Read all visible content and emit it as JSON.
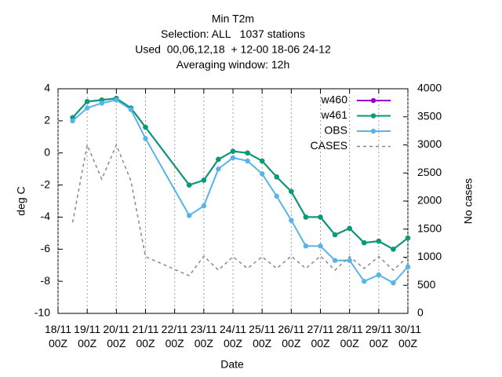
{
  "chart_data": {
    "type": "line",
    "title": [
      "Min T2m",
      "Selection: ALL   1037 stations",
      "Used  00,06,12,18  + 12-00 18-06 24-12",
      "Averaging window: 12h"
    ],
    "xlabel": "Date",
    "ylabel": "deg C",
    "y2label": "No cases",
    "xlim": [
      0,
      12
    ],
    "xticks": [
      {
        "value": 0,
        "label": "18/11 00Z"
      },
      {
        "value": 1,
        "label": "19/11 00Z"
      },
      {
        "value": 2,
        "label": "20/11 00Z"
      },
      {
        "value": 3,
        "label": "21/11 00Z"
      },
      {
        "value": 4,
        "label": "22/11 00Z"
      },
      {
        "value": 5,
        "label": "23/11 00Z"
      },
      {
        "value": 6,
        "label": "24/11 00Z"
      },
      {
        "value": 7,
        "label": "25/11 00Z"
      },
      {
        "value": 8,
        "label": "26/11 00Z"
      },
      {
        "value": 9,
        "label": "27/11 00Z"
      },
      {
        "value": 10,
        "label": "28/11 00Z"
      },
      {
        "value": 11,
        "label": "29/11 00Z"
      },
      {
        "value": 12,
        "label": "30/11 00Z"
      }
    ],
    "ylim": [
      -10,
      4
    ],
    "yticks": [
      -10,
      -8,
      -6,
      -4,
      -2,
      0,
      2,
      4
    ],
    "y2lim": [
      0,
      4000
    ],
    "y2ticks": [
      0,
      500,
      1000,
      1500,
      2000,
      2500,
      3000,
      3500,
      4000
    ],
    "xgrid": true,
    "legend": "top-right",
    "x": [
      0.5,
      1,
      1.5,
      2,
      2.5,
      3,
      4.5,
      5,
      5.5,
      6,
      6.5,
      7,
      7.5,
      8,
      8.5,
      9,
      9.5,
      10,
      10.5,
      11,
      11.5,
      12
    ],
    "series": [
      {
        "name": "w460",
        "color": "#9400d3",
        "dashed": false,
        "markers": true,
        "values": [
          2.2,
          3.2,
          3.3,
          3.4,
          2.8,
          1.6,
          -2.0,
          -1.7,
          -0.4,
          0.1,
          0.0,
          -0.5,
          -1.5,
          -2.4,
          -4.0,
          -4.0,
          -5.1,
          -4.7,
          -5.6,
          -5.5,
          -6.0,
          -5.3
        ]
      },
      {
        "name": "w461",
        "color": "#009e73",
        "dashed": false,
        "markers": true,
        "values": [
          2.2,
          3.2,
          3.3,
          3.4,
          2.8,
          1.6,
          -2.0,
          -1.7,
          -0.4,
          0.1,
          0.0,
          -0.5,
          -1.5,
          -2.4,
          -4.0,
          -4.0,
          -5.1,
          -4.7,
          -5.6,
          -5.5,
          -6.0,
          -5.3
        ]
      },
      {
        "name": "OBS",
        "color": "#56b4e9",
        "dashed": false,
        "markers": true,
        "values": [
          2.0,
          2.8,
          3.1,
          3.3,
          2.7,
          0.9,
          -3.9,
          -3.3,
          -1.0,
          -0.3,
          -0.5,
          -1.3,
          -2.7,
          -4.2,
          -5.8,
          -5.8,
          -6.7,
          -6.7,
          -8.0,
          -7.6,
          -8.1,
          -7.1
        ]
      },
      {
        "name": "CASES",
        "color": "#888888",
        "dashed": true,
        "markers": false,
        "axis": "y2",
        "values": [
          1620,
          3000,
          2390,
          3000,
          2360,
          1010,
          670,
          1020,
          770,
          1010,
          800,
          1010,
          800,
          1020,
          800,
          1020,
          770,
          1010,
          800,
          1010,
          770,
          1010
        ]
      }
    ]
  }
}
